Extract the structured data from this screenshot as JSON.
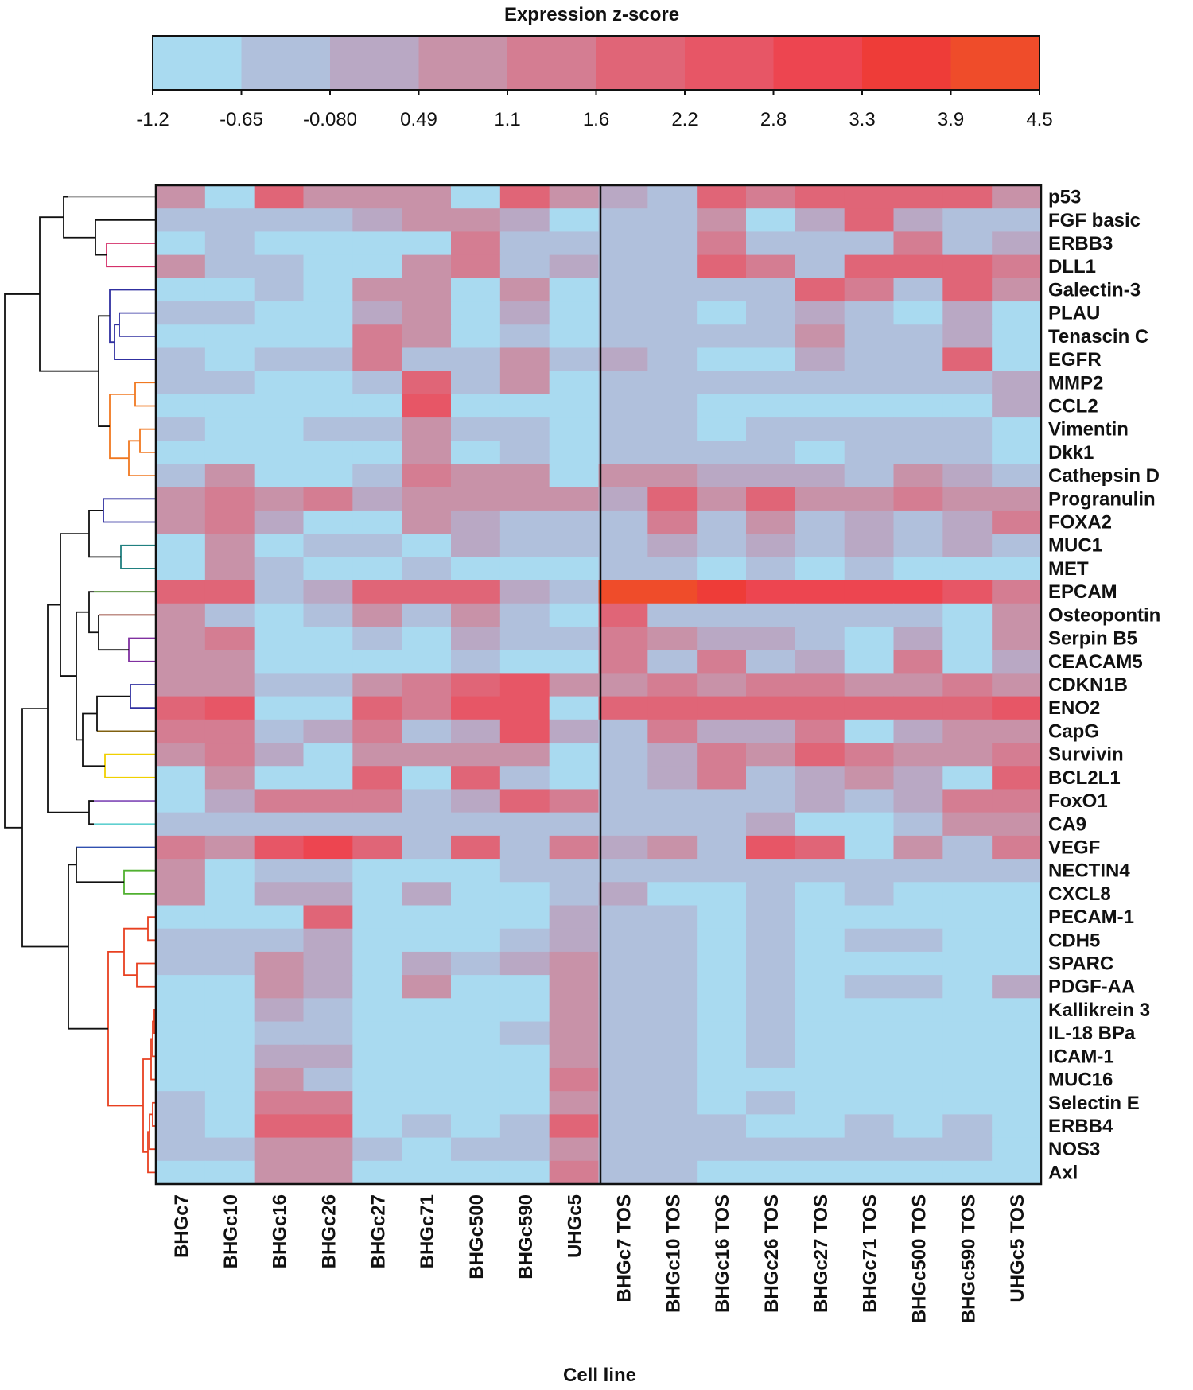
{
  "chart_data": {
    "type": "heatmap",
    "title": "",
    "legend": {
      "title": "Expression z-score",
      "tick_labels": [
        "-1.2",
        "-0.65",
        "-0.080",
        "0.49",
        "1.1",
        "1.6",
        "2.2",
        "2.8",
        "3.3",
        "3.9",
        "4.5"
      ],
      "range": [
        -1.2,
        4.5
      ],
      "bins": 10,
      "colors": [
        "#a9daf0",
        "#b0c0dc",
        "#b9a8c4",
        "#c892a8",
        "#d47d92",
        "#e06577",
        "#e75666",
        "#ed4550",
        "#ee3c38",
        "#ef4c2a"
      ]
    },
    "xlabel": "Cell line",
    "ylabel": "",
    "columns": [
      "BHGc7",
      "BHGc10",
      "BHGc16",
      "BHGc26",
      "BHGc27",
      "BHGc71",
      "BHGc500",
      "BHGc590",
      "UHGc5",
      "BHGc7 TOS",
      "BHGc10 TOS",
      "BHGc16 TOS",
      "BHGc26 TOS",
      "BHGc27 TOS",
      "BHGc71 TOS",
      "BHGc500 TOS",
      "BHGc590 TOS",
      "UHGc5 TOS"
    ],
    "rows": [
      "p53",
      "FGF basic",
      "ERBB3",
      "DLL1",
      "Galectin-3",
      "PLAU",
      "Tenascin C",
      "EGFR",
      "MMP2",
      "CCL2",
      "Vimentin",
      "Dkk1",
      "Cathepsin D",
      "Progranulin",
      "FOXA2",
      "MUC1",
      "MET",
      "EPCAM",
      "Osteopontin",
      "Serpin B5",
      "CEACAM5",
      "CDKN1B",
      "ENO2",
      "CapG",
      "Survivin",
      "BCL2L1",
      "FoxO1",
      "CA9",
      "VEGF",
      "NECTIN4",
      "CXCL8",
      "PECAM-1",
      "CDH5",
      "SPARC",
      "PDGF-AA",
      "Kallikrein 3",
      "IL-18 BPa",
      "ICAM-1",
      "MUC16",
      "Selectin E",
      "ERBB4",
      "NOS3",
      "Axl"
    ],
    "values": [
      [
        1.0,
        -0.9,
        1.7,
        0.7,
        1.0,
        1.0,
        -0.9,
        2.1,
        0.8,
        0.3,
        -0.4,
        2.0,
        1.5,
        1.9,
        1.9,
        1.8,
        1.7,
        1.0
      ],
      [
        -0.4,
        -0.4,
        -0.4,
        -0.4,
        0.2,
        0.6,
        0.7,
        0.2,
        -0.9,
        -0.4,
        -0.4,
        0.7,
        -0.9,
        0.3,
        1.8,
        0.2,
        -0.4,
        -0.4
      ],
      [
        -0.9,
        -0.4,
        -0.9,
        -0.9,
        -0.9,
        -0.9,
        1.3,
        -0.4,
        -0.4,
        -0.4,
        -0.4,
        1.3,
        -0.4,
        -0.4,
        -0.4,
        1.3,
        -0.4,
        0.2
      ],
      [
        0.8,
        -0.4,
        -0.4,
        -0.9,
        -0.9,
        1.0,
        1.3,
        -0.4,
        0.2,
        -0.4,
        -0.4,
        1.8,
        1.3,
        -0.4,
        2.2,
        1.9,
        1.9,
        1.5
      ],
      [
        -0.9,
        -0.9,
        -0.4,
        -0.9,
        0.8,
        0.9,
        -0.9,
        0.8,
        -0.9,
        -0.4,
        -0.4,
        -0.4,
        -0.4,
        1.9,
        1.3,
        -0.4,
        1.9,
        0.9
      ],
      [
        -0.4,
        -0.4,
        -0.9,
        -0.9,
        0.2,
        0.9,
        -0.9,
        0.2,
        -0.9,
        -0.4,
        -0.4,
        -0.9,
        -0.4,
        0.2,
        -0.4,
        -0.9,
        0.2,
        -0.9
      ],
      [
        -0.9,
        -0.9,
        -0.9,
        -0.9,
        1.3,
        0.9,
        -0.9,
        -0.4,
        -0.9,
        -0.4,
        -0.4,
        -0.4,
        -0.4,
        0.8,
        -0.4,
        -0.4,
        0.2,
        -0.9
      ],
      [
        -0.4,
        -0.9,
        -0.4,
        -0.4,
        1.3,
        -0.4,
        -0.4,
        0.9,
        -0.4,
        0.3,
        -0.4,
        -0.9,
        -0.9,
        0.2,
        -0.4,
        -0.4,
        1.7,
        -0.9
      ],
      [
        -0.4,
        -0.4,
        -0.9,
        -0.9,
        -0.4,
        1.8,
        -0.4,
        0.9,
        -0.9,
        -0.4,
        -0.4,
        -0.4,
        -0.4,
        -0.4,
        -0.4,
        -0.4,
        -0.4,
        0.3
      ],
      [
        -0.9,
        -0.9,
        -0.9,
        -0.9,
        -0.9,
        2.3,
        -0.9,
        -0.9,
        -0.9,
        -0.4,
        -0.4,
        -0.9,
        -0.9,
        -0.9,
        -0.9,
        -0.9,
        -0.9,
        0.3
      ],
      [
        -0.4,
        -0.9,
        -0.9,
        -0.4,
        -0.4,
        0.9,
        -0.4,
        -0.4,
        -0.9,
        -0.4,
        -0.4,
        -0.9,
        -0.4,
        -0.4,
        -0.4,
        -0.4,
        -0.4,
        -0.9
      ],
      [
        -0.9,
        -0.9,
        -0.9,
        -0.9,
        -0.9,
        0.9,
        -0.9,
        -0.4,
        -0.9,
        -0.4,
        -0.4,
        -0.4,
        -0.4,
        -0.9,
        -0.4,
        -0.4,
        -0.4,
        -0.9
      ],
      [
        -0.4,
        0.9,
        -0.9,
        -0.9,
        -0.4,
        1.3,
        0.6,
        0.6,
        -0.9,
        0.8,
        0.8,
        0.3,
        0.3,
        0.3,
        -0.4,
        0.7,
        0.3,
        -0.4
      ],
      [
        0.9,
        1.5,
        0.9,
        1.3,
        0.3,
        0.9,
        0.7,
        0.6,
        1.0,
        0.3,
        2.0,
        0.9,
        1.7,
        0.9,
        0.6,
        1.5,
        0.9,
        1.0
      ],
      [
        0.9,
        1.5,
        0.3,
        -0.9,
        -0.9,
        0.9,
        0.3,
        -0.4,
        -0.4,
        -0.4,
        1.3,
        -0.4,
        0.9,
        -0.4,
        0.3,
        -0.4,
        0.3,
        1.3
      ],
      [
        -0.9,
        0.9,
        -0.9,
        -0.4,
        -0.4,
        -0.9,
        0.3,
        -0.4,
        -0.4,
        -0.4,
        0.3,
        -0.4,
        0.3,
        -0.4,
        0.3,
        -0.4,
        0.3,
        -0.4
      ],
      [
        -0.9,
        0.9,
        -0.4,
        -0.9,
        -0.9,
        -0.4,
        -0.9,
        -0.9,
        -0.9,
        -0.4,
        -0.4,
        -0.9,
        -0.4,
        -0.9,
        -0.4,
        -0.9,
        -0.9,
        -0.9
      ],
      [
        1.8,
        1.8,
        -0.4,
        0.2,
        1.8,
        1.8,
        2.0,
        0.3,
        -0.4,
        4.5,
        4.1,
        3.6,
        3.3,
        2.8,
        3.1,
        3.1,
        2.3,
        1.5
      ],
      [
        1.0,
        -0.4,
        -0.9,
        -0.4,
        1.0,
        -0.4,
        1.0,
        -0.4,
        -0.9,
        2.1,
        -0.4,
        -0.4,
        -0.4,
        -0.4,
        -0.4,
        -0.4,
        -0.9,
        0.9
      ],
      [
        1.0,
        1.3,
        -0.9,
        -0.9,
        -0.4,
        -0.9,
        0.3,
        -0.4,
        -0.4,
        1.5,
        0.9,
        0.3,
        0.3,
        -0.4,
        -0.9,
        0.3,
        -0.9,
        0.9
      ],
      [
        1.0,
        0.6,
        -0.9,
        -0.9,
        -0.9,
        -0.9,
        -0.4,
        -0.9,
        -0.9,
        1.3,
        -0.4,
        1.5,
        -0.4,
        0.2,
        -0.9,
        1.3,
        -0.9,
        0.3
      ],
      [
        1.0,
        1.0,
        -0.4,
        -0.4,
        0.9,
        1.3,
        1.8,
        2.6,
        1.0,
        0.9,
        1.3,
        1.0,
        1.5,
        1.3,
        1.0,
        1.0,
        1.3,
        1.0
      ],
      [
        2.0,
        2.4,
        -0.9,
        -0.9,
        2.0,
        1.5,
        2.3,
        2.6,
        -0.9,
        1.9,
        2.1,
        1.9,
        1.9,
        1.9,
        1.9,
        1.9,
        1.9,
        2.3
      ],
      [
        1.3,
        1.3,
        -0.4,
        0.3,
        1.3,
        -0.4,
        0.3,
        2.6,
        0.2,
        -0.4,
        1.5,
        0.3,
        0.3,
        1.3,
        -0.9,
        0.3,
        0.9,
        0.9
      ],
      [
        0.9,
        1.3,
        0.3,
        -0.9,
        0.9,
        0.9,
        0.9,
        0.9,
        -0.9,
        -0.4,
        0.3,
        1.5,
        0.9,
        2.0,
        1.3,
        0.9,
        0.9,
        1.3
      ],
      [
        -0.9,
        0.9,
        -0.9,
        -0.9,
        2.0,
        -0.9,
        1.8,
        -0.4,
        -0.9,
        -0.4,
        0.3,
        1.3,
        -0.4,
        0.3,
        0.9,
        0.3,
        -0.9,
        1.9
      ],
      [
        -0.9,
        0.3,
        1.3,
        1.5,
        1.3,
        -0.4,
        0.3,
        2.1,
        1.3,
        -0.4,
        -0.4,
        -0.4,
        -0.4,
        0.3,
        -0.4,
        0.3,
        1.3,
        1.3
      ],
      [
        -0.4,
        -0.4,
        -0.4,
        -0.4,
        -0.4,
        -0.4,
        -0.4,
        -0.4,
        -0.4,
        -0.4,
        -0.4,
        -0.4,
        0.3,
        -0.9,
        -0.9,
        -0.4,
        0.9,
        0.9
      ],
      [
        1.5,
        1.0,
        2.4,
        3.3,
        2.2,
        -0.4,
        2.0,
        -0.4,
        1.3,
        0.3,
        0.6,
        -0.4,
        2.3,
        2.2,
        -0.9,
        0.8,
        -0.4,
        1.5
      ],
      [
        0.9,
        -0.9,
        -0.4,
        -0.4,
        -0.9,
        -0.9,
        -0.9,
        -0.4,
        -0.4,
        -0.4,
        -0.4,
        -0.4,
        -0.4,
        -0.4,
        -0.4,
        -0.4,
        -0.4,
        -0.4
      ],
      [
        0.9,
        -0.9,
        0.3,
        0.3,
        -0.9,
        0.3,
        -0.9,
        -0.9,
        -0.4,
        0.3,
        -0.9,
        -0.9,
        -0.4,
        -0.9,
        -0.4,
        -0.9,
        -0.9,
        -0.9
      ],
      [
        -0.9,
        -0.9,
        -0.9,
        1.8,
        -0.9,
        -0.9,
        -0.9,
        -0.9,
        0.3,
        -0.4,
        -0.4,
        -0.9,
        -0.4,
        -0.9,
        -0.9,
        -0.9,
        -0.9,
        -0.9
      ],
      [
        -0.4,
        -0.4,
        -0.4,
        0.3,
        -0.9,
        -0.9,
        -0.9,
        -0.4,
        0.3,
        -0.4,
        -0.4,
        -0.9,
        -0.4,
        -0.9,
        -0.4,
        -0.4,
        -0.9,
        -0.9
      ],
      [
        -0.4,
        -0.4,
        1.0,
        0.3,
        -0.9,
        0.3,
        -0.4,
        0.3,
        1.0,
        -0.4,
        -0.4,
        -0.9,
        -0.4,
        -0.9,
        -0.9,
        -0.9,
        -0.9,
        -0.9
      ],
      [
        -0.9,
        -0.9,
        1.0,
        0.3,
        -0.9,
        0.9,
        -0.9,
        -0.9,
        1.0,
        -0.4,
        -0.4,
        -0.9,
        -0.4,
        -0.9,
        -0.4,
        -0.4,
        -0.9,
        0.3
      ],
      [
        -0.9,
        -0.9,
        0.3,
        -0.4,
        -0.9,
        -0.9,
        -0.9,
        -0.9,
        1.0,
        -0.4,
        -0.4,
        -0.9,
        -0.4,
        -0.9,
        -0.9,
        -0.9,
        -0.9,
        -0.9
      ],
      [
        -0.9,
        -0.9,
        -0.4,
        -0.4,
        -0.9,
        -0.9,
        -0.9,
        -0.4,
        1.0,
        -0.4,
        -0.4,
        -0.9,
        -0.4,
        -0.9,
        -0.9,
        -0.9,
        -0.9,
        -0.9
      ],
      [
        -0.9,
        -0.9,
        0.3,
        0.3,
        -0.9,
        -0.9,
        -0.9,
        -0.9,
        1.0,
        -0.4,
        -0.4,
        -0.9,
        -0.4,
        -0.9,
        -0.9,
        -0.9,
        -0.9,
        -0.9
      ],
      [
        -0.9,
        -0.9,
        0.9,
        -0.4,
        -0.9,
        -0.9,
        -0.9,
        -0.9,
        1.3,
        -0.4,
        -0.4,
        -0.9,
        -0.9,
        -0.9,
        -0.9,
        -0.9,
        -0.9,
        -0.9
      ],
      [
        -0.4,
        -0.9,
        1.3,
        1.3,
        -0.9,
        -0.9,
        -0.9,
        -0.9,
        0.9,
        -0.4,
        -0.4,
        -0.9,
        -0.4,
        -0.9,
        -0.9,
        -0.9,
        -0.9,
        -0.9
      ],
      [
        -0.4,
        -0.9,
        2.2,
        2.2,
        -0.9,
        -0.4,
        -0.9,
        -0.4,
        2.2,
        -0.4,
        -0.4,
        -0.4,
        -0.9,
        -0.9,
        -0.4,
        -0.9,
        -0.4,
        -0.9
      ],
      [
        -0.4,
        -0.4,
        0.6,
        0.8,
        -0.4,
        -0.9,
        -0.4,
        -0.4,
        1.0,
        -0.4,
        -0.4,
        -0.4,
        -0.4,
        -0.4,
        -0.4,
        -0.4,
        -0.4,
        -0.9
      ],
      [
        -0.9,
        -0.9,
        1.0,
        0.6,
        -0.9,
        -0.9,
        -0.9,
        -0.9,
        1.5,
        -0.4,
        -0.4,
        -0.9,
        -0.9,
        -0.9,
        -0.9,
        -0.9,
        -0.9,
        -0.9
      ]
    ],
    "row_dendrogram_colors": [
      "#a0a0a0",
      "#d4306a",
      "#3030a0",
      "#f07820",
      "#3030a0",
      "#208080",
      "#408020",
      "#802010",
      "#8030a0",
      "#3030a0",
      "#806010",
      "#f0d000",
      "#9060c0",
      "#60d0d0",
      "#3050b0",
      "#50b030",
      "#e84020"
    ]
  }
}
